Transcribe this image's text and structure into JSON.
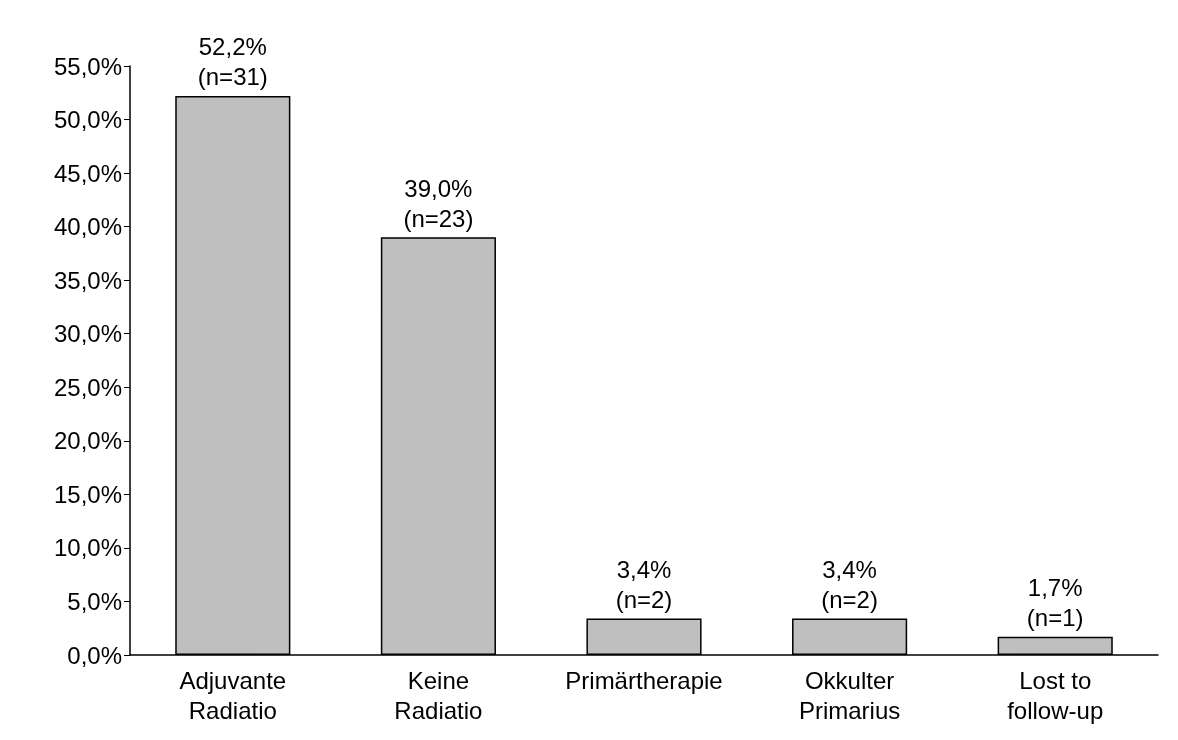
{
  "chart_data": {
    "type": "bar",
    "categories": [
      "Adjuvante\nRadiatio",
      "Keine\nRadiatio",
      "Primärtherapie",
      "Okkulter\nPrimarius",
      "Lost to\nfollow-up"
    ],
    "values": [
      52.2,
      39.0,
      3.4,
      3.4,
      1.7
    ],
    "color": "#bfbfbf",
    "value_labels": [
      "52,2%\n(n=31)",
      "39,0%\n(n=23)",
      "3,4%\n(n=2)",
      "3,4%\n(n=2)",
      "1,7%\n(n=1)"
    ],
    "ylim": [
      0,
      55
    ],
    "yticks": [
      {
        "value": 0,
        "label": "0,0%"
      },
      {
        "value": 5,
        "label": "5,0%"
      },
      {
        "value": 10,
        "label": "10,0%"
      },
      {
        "value": 15,
        "label": "15,0%"
      },
      {
        "value": 20,
        "label": "20,0%"
      },
      {
        "value": 25,
        "label": "25,0%"
      },
      {
        "value": 30,
        "label": "30,0%"
      },
      {
        "value": 35,
        "label": "35,0%"
      },
      {
        "value": 40,
        "label": "40,0%"
      },
      {
        "value": 45,
        "label": "45,0%"
      },
      {
        "value": 50,
        "label": "50,0%"
      },
      {
        "value": 55,
        "label": "55,0%"
      }
    ],
    "grid": false
  }
}
